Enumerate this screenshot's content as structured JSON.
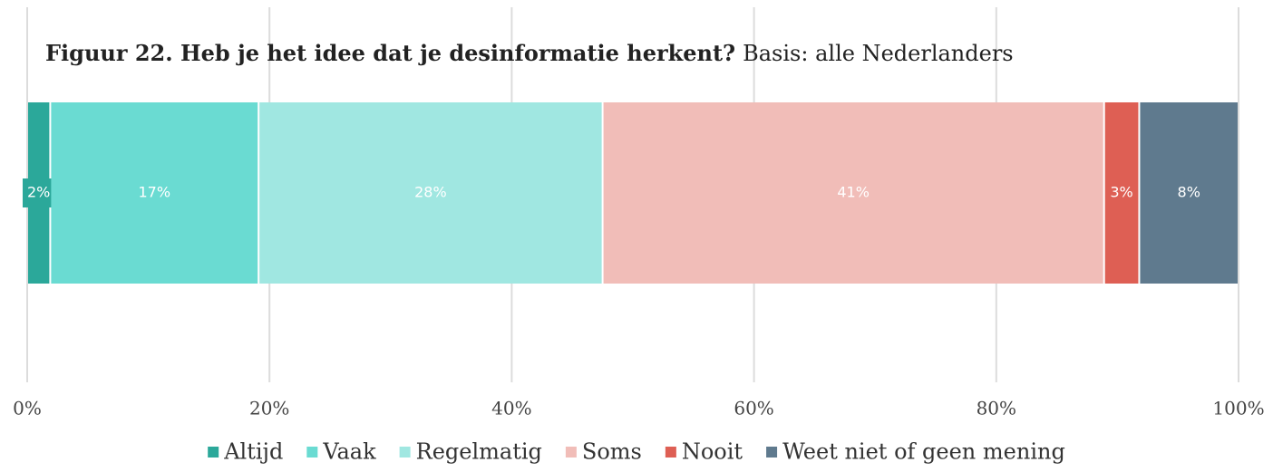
{
  "chart_data": {
    "type": "stacked-bar",
    "orientation": "horizontal",
    "title": "Figuur 22. Heb je het idee dat je desinformatie herkent?",
    "subtitle": "Basis: alle Nederlanders",
    "series": [
      {
        "name": "Altijd",
        "color": "#2ba89a",
        "values": [
          1.9
        ],
        "value_labels": [
          "2%"
        ]
      },
      {
        "name": "Vaak",
        "color": "#6adbd2",
        "values": [
          17.2
        ],
        "value_labels": [
          "17%"
        ]
      },
      {
        "name": "Regelmatig",
        "color": "#a0e7e1",
        "values": [
          28.4
        ],
        "value_labels": [
          "28%"
        ]
      },
      {
        "name": "Soms",
        "color": "#f1bdb8",
        "values": [
          41.4
        ],
        "value_labels": [
          "41%"
        ]
      },
      {
        "name": "Nooit",
        "color": "#de5f54",
        "values": [
          2.9
        ],
        "value_labels": [
          "3%"
        ]
      },
      {
        "name": "Weet niet of geen mening",
        "color": "#5f7a8e",
        "values": [
          8.2
        ],
        "value_labels": [
          "8%"
        ]
      }
    ],
    "xlim": [
      0,
      100
    ],
    "xticks": [
      {
        "value": 0,
        "label": "0%"
      },
      {
        "value": 20,
        "label": "20%"
      },
      {
        "value": 40,
        "label": "40%"
      },
      {
        "value": 60,
        "label": "60%"
      },
      {
        "value": 80,
        "label": "80%"
      },
      {
        "value": 100,
        "label": "100%"
      }
    ],
    "grid": true,
    "legend": "bottom"
  }
}
